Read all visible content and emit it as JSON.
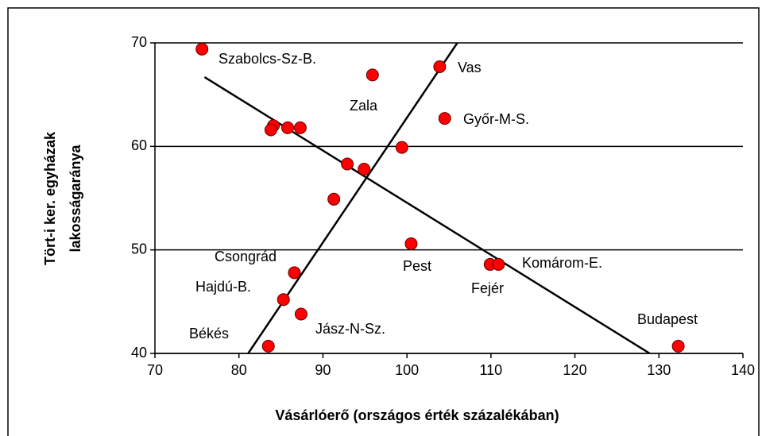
{
  "chart_data": {
    "type": "scatter",
    "xlabel": "Vásárlóerő (országos érték százalékában)",
    "ylabel": [
      "Tört-i ker. egyházak",
      "lakosságaránya"
    ],
    "xlim": [
      70,
      140
    ],
    "xticks": [
      70,
      80,
      90,
      100,
      110,
      120,
      130,
      140
    ],
    "ylim": [
      40,
      70
    ],
    "yticks": [
      40,
      50,
      60,
      70
    ],
    "grid": true,
    "series": [
      {
        "color": "#ff0000",
        "x": [
          75.6,
          95.9,
          103.9,
          104.5,
          84.1,
          83.8,
          85.8,
          87.3,
          99.4,
          92.9,
          94.9,
          91.3,
          100.5,
          109.9,
          110.9,
          86.6,
          85.3,
          87.4,
          83.5,
          132.3
        ],
        "values": [
          69.4,
          66.9,
          67.7,
          62.7,
          62.0,
          61.6,
          61.8,
          61.8,
          59.9,
          58.3,
          57.8,
          54.9,
          50.6,
          48.6,
          48.6,
          47.8,
          45.2,
          43.8,
          40.7,
          40.7
        ]
      }
    ],
    "trendlines": [
      {
        "x": [
          75.9,
          128.9
        ],
        "values": [
          66.7,
          40
        ]
      },
      {
        "x": [
          81.1,
          106.0
        ],
        "values": [
          40,
          70
        ]
      }
    ],
    "annotations": [
      "Szabolcs-Sz-B.",
      "Zala",
      "Vas",
      "Győr-M-S.",
      "Csongrád",
      "Pest",
      "Komárom-E.",
      "Fejér",
      "Hajdú-B.",
      "Jász-N-Sz.",
      "Békés",
      "Budapest"
    ]
  }
}
